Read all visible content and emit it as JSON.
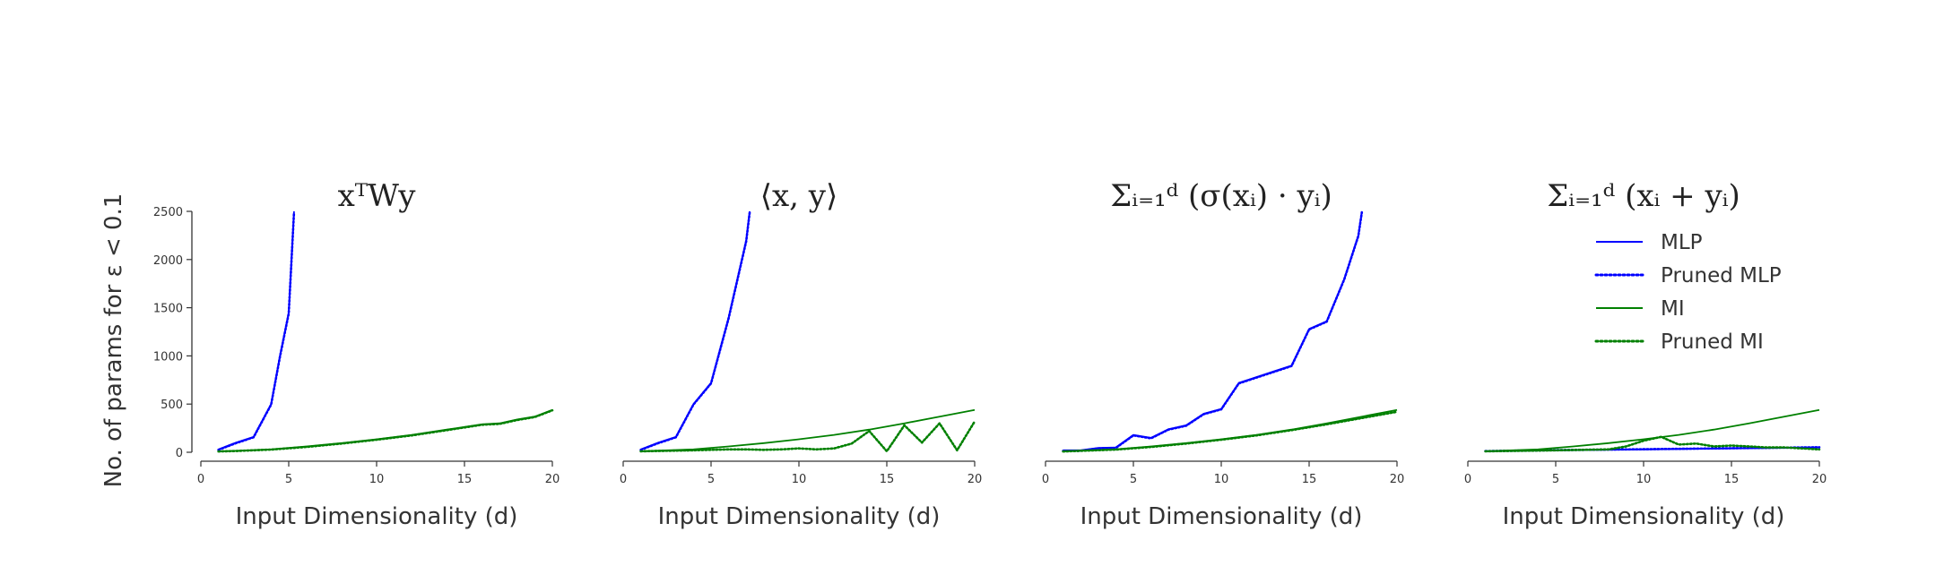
{
  "figure": {
    "ylabel": "No. of params for ε < 0.1"
  },
  "legend": {
    "items": [
      {
        "label": "MLP",
        "color": "#0000ff",
        "style": "solid"
      },
      {
        "label": "Pruned MLP",
        "color": "#0000ff",
        "style": "dotted"
      },
      {
        "label": "MI",
        "color": "#008000",
        "style": "solid"
      },
      {
        "label": "Pruned MI",
        "color": "#008000",
        "style": "dotted"
      }
    ]
  },
  "chart_data": [
    {
      "type": "line",
      "title": "xᵀWy",
      "xlabel": "Input Dimensionality (d)",
      "ylabel": "No. of params for ε < 0.1",
      "xlim": [
        0,
        20
      ],
      "ylim": [
        0,
        2500
      ],
      "xticks": [
        0,
        5,
        10,
        15,
        20
      ],
      "yticks": [
        0,
        500,
        1000,
        1500,
        2000,
        2500
      ],
      "grid": false,
      "series": [
        {
          "name": "MLP",
          "color": "#0000ff",
          "style": "solid",
          "x": [
            1,
            2,
            3,
            4,
            4.5,
            5,
            5.3
          ],
          "y": [
            30,
            100,
            160,
            500,
            1000,
            1450,
            2500
          ]
        },
        {
          "name": "Pruned MLP",
          "color": "#0000ff",
          "style": "dotted",
          "x": [
            1,
            2,
            3,
            4,
            4.5,
            5,
            5.3
          ],
          "y": [
            25,
            95,
            155,
            495,
            990,
            1440,
            2490
          ]
        },
        {
          "name": "MI",
          "color": "#008000",
          "style": "solid",
          "x": [
            1,
            2,
            4,
            6,
            8,
            10,
            12,
            14,
            16,
            17,
            18,
            19,
            20
          ],
          "y": [
            10,
            15,
            30,
            60,
            95,
            135,
            180,
            235,
            290,
            300,
            340,
            370,
            440
          ]
        },
        {
          "name": "Pruned MI",
          "color": "#008000",
          "style": "dotted",
          "x": [
            1,
            2,
            4,
            6,
            8,
            10,
            12,
            14,
            16,
            17,
            18,
            19,
            20
          ],
          "y": [
            8,
            13,
            28,
            55,
            90,
            130,
            175,
            230,
            285,
            295,
            335,
            365,
            435
          ]
        }
      ]
    },
    {
      "type": "line",
      "title": "⟨x, y⟩",
      "xlabel": "Input Dimensionality (d)",
      "xlim": [
        0,
        20
      ],
      "ylim": [
        0,
        2500
      ],
      "xticks": [
        0,
        5,
        10,
        15,
        20
      ],
      "grid": false,
      "series": [
        {
          "name": "MLP",
          "color": "#0000ff",
          "style": "solid",
          "x": [
            1,
            2,
            3,
            4,
            5,
            6,
            7,
            7.2
          ],
          "y": [
            30,
            100,
            160,
            500,
            720,
            1400,
            2200,
            2500
          ]
        },
        {
          "name": "Pruned MLP",
          "color": "#0000ff",
          "style": "dotted",
          "x": [
            1,
            2,
            3,
            4,
            5,
            6,
            7,
            7.2
          ],
          "y": [
            25,
            95,
            155,
            495,
            715,
            1390,
            2190,
            2490
          ]
        },
        {
          "name": "MI",
          "color": "#008000",
          "style": "solid",
          "x": [
            1,
            4,
            6,
            8,
            10,
            12,
            14,
            16,
            18,
            20
          ],
          "y": [
            10,
            30,
            60,
            95,
            135,
            180,
            235,
            300,
            370,
            440
          ]
        },
        {
          "name": "Pruned MI",
          "color": "#008000",
          "style": "dotted",
          "x": [
            1,
            4,
            6,
            7,
            8,
            9,
            10,
            11,
            12,
            13,
            14,
            15,
            16,
            17,
            18,
            19,
            20
          ],
          "y": [
            10,
            20,
            30,
            30,
            25,
            30,
            40,
            30,
            40,
            90,
            220,
            10,
            280,
            100,
            300,
            20,
            320
          ]
        }
      ]
    },
    {
      "type": "line",
      "title": "Σᵢ₌₁ᵈ (σ(xᵢ) · yᵢ)",
      "xlabel": "Input Dimensionality (d)",
      "xlim": [
        0,
        20
      ],
      "ylim": [
        0,
        2500
      ],
      "xticks": [
        0,
        5,
        10,
        15,
        20
      ],
      "grid": false,
      "series": [
        {
          "name": "MLP",
          "color": "#0000ff",
          "style": "solid",
          "x": [
            1,
            2,
            3,
            4,
            5,
            6,
            7,
            8,
            9,
            10,
            11,
            12,
            13,
            14,
            15,
            16,
            17,
            17.8,
            18
          ],
          "y": [
            20,
            20,
            45,
            50,
            180,
            150,
            240,
            280,
            400,
            450,
            720,
            780,
            840,
            900,
            1280,
            1360,
            1800,
            2250,
            2500
          ]
        },
        {
          "name": "Pruned MLP",
          "color": "#0000ff",
          "style": "dotted",
          "x": [
            1,
            2,
            3,
            4,
            5,
            6,
            7,
            8,
            9,
            10,
            11,
            12,
            13,
            14,
            15,
            16,
            17,
            17.8,
            18
          ],
          "y": [
            15,
            15,
            40,
            45,
            175,
            145,
            235,
            275,
            395,
            445,
            715,
            775,
            835,
            895,
            1275,
            1355,
            1795,
            2245,
            2490
          ]
        },
        {
          "name": "MI",
          "color": "#008000",
          "style": "solid",
          "x": [
            1,
            4,
            6,
            8,
            10,
            12,
            14,
            16,
            18,
            20
          ],
          "y": [
            10,
            30,
            60,
            95,
            135,
            180,
            235,
            300,
            370,
            440
          ]
        },
        {
          "name": "Pruned MI",
          "color": "#008000",
          "style": "dotted",
          "x": [
            1,
            4,
            6,
            8,
            10,
            12,
            14,
            16,
            18,
            20
          ],
          "y": [
            8,
            28,
            55,
            90,
            130,
            175,
            230,
            290,
            355,
            420
          ]
        }
      ]
    },
    {
      "type": "line",
      "title": "Σᵢ₌₁ᵈ (xᵢ + yᵢ)",
      "xlabel": "Input Dimensionality (d)",
      "xlim": [
        0,
        20
      ],
      "ylim": [
        0,
        2500
      ],
      "xticks": [
        0,
        5,
        10,
        15,
        20
      ],
      "grid": false,
      "series": [
        {
          "name": "MLP",
          "color": "#0000ff",
          "style": "solid",
          "x": [
            1,
            5,
            10,
            15,
            20
          ],
          "y": [
            10,
            20,
            30,
            40,
            50
          ]
        },
        {
          "name": "Pruned MLP",
          "color": "#0000ff",
          "style": "dotted",
          "x": [
            1,
            5,
            10,
            15,
            20
          ],
          "y": [
            12,
            22,
            32,
            42,
            52
          ]
        },
        {
          "name": "MI",
          "color": "#008000",
          "style": "solid",
          "x": [
            1,
            4,
            6,
            8,
            10,
            12,
            14,
            16,
            18,
            20
          ],
          "y": [
            10,
            30,
            60,
            95,
            135,
            180,
            235,
            300,
            370,
            440
          ]
        },
        {
          "name": "Pruned MI",
          "color": "#008000",
          "style": "dotted",
          "x": [
            1,
            5,
            8,
            9,
            10,
            11,
            12,
            13,
            14,
            15,
            16,
            17,
            18,
            19,
            20
          ],
          "y": [
            10,
            20,
            30,
            60,
            120,
            160,
            80,
            90,
            60,
            70,
            60,
            50,
            50,
            40,
            30
          ]
        }
      ]
    }
  ]
}
